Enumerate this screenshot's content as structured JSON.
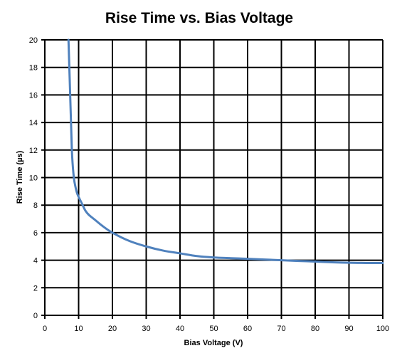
{
  "chart_data": {
    "type": "line",
    "title": "Rise Time vs. Bias Voltage",
    "xlabel": "Bias Voltage (V)",
    "ylabel": "Rise Time (µs)",
    "xlim": [
      0,
      100
    ],
    "ylim": [
      0,
      20
    ],
    "x_ticks": [
      "0",
      "10",
      "20",
      "30",
      "40",
      "50",
      "60",
      "70",
      "80",
      "90",
      "100"
    ],
    "y_ticks": [
      "0",
      "2",
      "4",
      "6",
      "8",
      "10",
      "12",
      "14",
      "16",
      "18",
      "20"
    ],
    "grid": true,
    "legend": "none",
    "series": [
      {
        "color": "#4f81bd",
        "x": [
          7.0,
          7.5,
          8.0,
          8.5,
          9.0,
          9.5,
          10,
          11,
          12,
          13,
          15,
          17,
          20,
          25,
          30,
          35,
          40,
          45,
          50,
          55,
          60,
          65,
          70,
          75,
          80,
          85,
          90,
          95,
          100
        ],
        "y": [
          20.0,
          16.0,
          12.0,
          10.2,
          9.4,
          8.9,
          8.6,
          8.1,
          7.6,
          7.3,
          6.9,
          6.5,
          6.0,
          5.4,
          5.0,
          4.7,
          4.5,
          4.3,
          4.2,
          4.15,
          4.1,
          4.05,
          4.0,
          3.95,
          3.9,
          3.85,
          3.82,
          3.8,
          3.8
        ]
      }
    ]
  }
}
